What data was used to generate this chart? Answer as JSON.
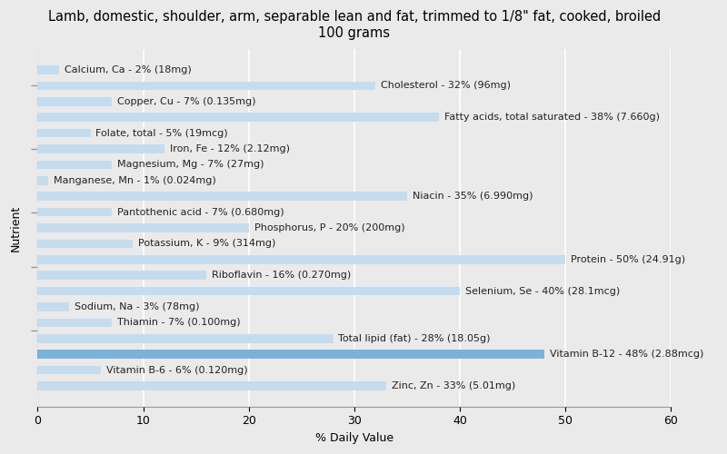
{
  "title": "Lamb, domestic, shoulder, arm, separable lean and fat, trimmed to 1/8\" fat, cooked, broiled\n100 grams",
  "xlabel": "% Daily Value",
  "ylabel": "Nutrient",
  "xlim": [
    0,
    60
  ],
  "xticks": [
    0,
    10,
    20,
    30,
    40,
    50,
    60
  ],
  "nutrients": [
    "Calcium, Ca - 2% (18mg)",
    "Cholesterol - 32% (96mg)",
    "Copper, Cu - 7% (0.135mg)",
    "Fatty acids, total saturated - 38% (7.660g)",
    "Folate, total - 5% (19mcg)",
    "Iron, Fe - 12% (2.12mg)",
    "Magnesium, Mg - 7% (27mg)",
    "Manganese, Mn - 1% (0.024mg)",
    "Niacin - 35% (6.990mg)",
    "Pantothenic acid - 7% (0.680mg)",
    "Phosphorus, P - 20% (200mg)",
    "Potassium, K - 9% (314mg)",
    "Protein - 50% (24.91g)",
    "Riboflavin - 16% (0.270mg)",
    "Selenium, Se - 40% (28.1mcg)",
    "Sodium, Na - 3% (78mg)",
    "Thiamin - 7% (0.100mg)",
    "Total lipid (fat) - 28% (18.05g)",
    "Vitamin B-12 - 48% (2.88mcg)",
    "Vitamin B-6 - 6% (0.120mg)",
    "Zinc, Zn - 33% (5.01mg)"
  ],
  "values": [
    2,
    32,
    7,
    38,
    5,
    12,
    7,
    1,
    35,
    7,
    20,
    9,
    50,
    16,
    40,
    3,
    7,
    28,
    48,
    6,
    33
  ],
  "bar_color": "#c5dcef",
  "highlight_color": "#7ab3d9",
  "highlight_indices": [
    18
  ],
  "background_color": "#eaeaea",
  "plot_bg_color": "#eaeaea",
  "bar_height": 0.55,
  "title_fontsize": 10.5,
  "label_fontsize": 8,
  "tick_fontsize": 9,
  "axis_label_fontsize": 9,
  "group_tick_positions": [
    19.0,
    15.0,
    11.0,
    7.5,
    3.5
  ],
  "grid_color": "#ffffff",
  "spine_color": "#999999"
}
